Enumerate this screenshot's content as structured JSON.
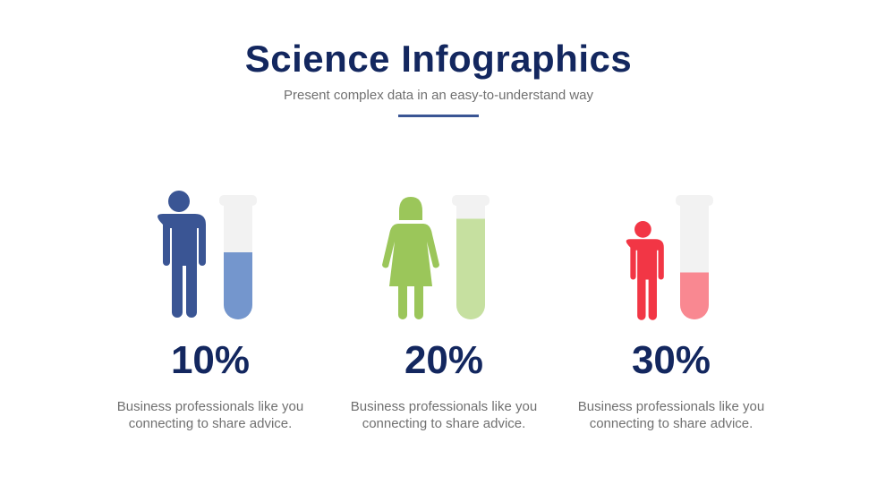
{
  "header": {
    "title": "Science Infographics",
    "subtitle": "Present complex data in an easy-to-understand way",
    "accent_color": "#3a5594"
  },
  "items": [
    {
      "figure": "man-icon",
      "percent": "10%",
      "description_line1": "Business professionals like you",
      "description_line2": "connecting to share advice.",
      "figure_color": "#3a5594",
      "fill_color": "#7496cd",
      "tube_fill_level": 0.6
    },
    {
      "figure": "woman-icon",
      "percent": "20%",
      "description_line1": "Business professionals like you",
      "description_line2": "connecting to share advice.",
      "figure_color": "#9bc65a",
      "fill_color": "#c6e0a0",
      "tube_fill_level": 0.9
    },
    {
      "figure": "man-icon",
      "percent": "30%",
      "description_line1": "Business professionals like you",
      "description_line2": "connecting to share advice.",
      "figure_color": "#f23645",
      "fill_color": "#f98891",
      "tube_fill_level": 0.42
    }
  ]
}
